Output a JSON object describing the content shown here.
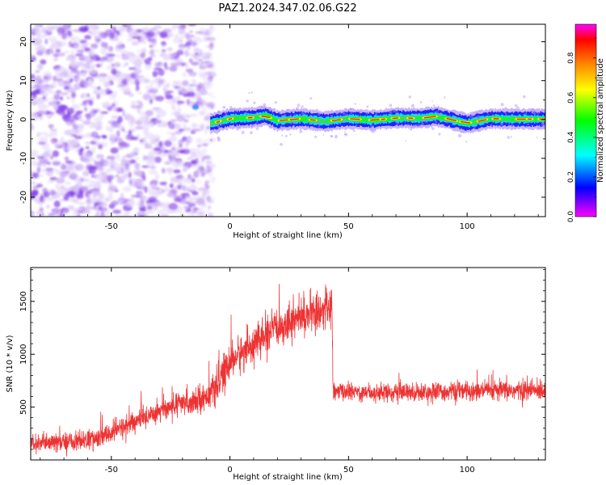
{
  "chart_data": [
    {
      "type": "heatmap",
      "title": "PAZ1.2024.347.02.06.G22",
      "xlabel": "Height of straight line (km)",
      "ylabel": "Frequency (Hz)",
      "xlim": [
        -84,
        133
      ],
      "ylim": [
        -25,
        24.5
      ],
      "x_ticks": [
        -50,
        0,
        50,
        100
      ],
      "y_ticks": [
        -20,
        -10,
        0,
        10,
        20
      ],
      "colorbar": {
        "label": "Normalized spectral amplitude",
        "ticks": [
          0.0,
          0.2,
          0.4,
          0.6,
          0.8
        ],
        "tick_labels": [
          "0.0",
          "0.2",
          "0.4",
          "0.6",
          "0.8"
        ],
        "range": [
          0,
          0.97
        ],
        "colors": [
          "#ff00ff",
          "#0000ff",
          "#00ffff",
          "#00ff00",
          "#ffff00",
          "#ff8000",
          "#ff0000",
          "#ff00ff"
        ]
      },
      "noise_region": {
        "x_range": [
          -84,
          -8
        ],
        "typical_amplitude": [
          0.05,
          0.25
        ],
        "color": "#8000ff"
      },
      "signal_track": {
        "x_start": -8,
        "x_end": 133,
        "frequency_points": [
          [
            -8,
            -1.0
          ],
          [
            0,
            0.2
          ],
          [
            10,
            0.5
          ],
          [
            15,
            1.0
          ],
          [
            20,
            -0.3
          ],
          [
            30,
            0.2
          ],
          [
            40,
            -0.5
          ],
          [
            50,
            0.2
          ],
          [
            60,
            -0.2
          ],
          [
            70,
            0.4
          ],
          [
            80,
            0.3
          ],
          [
            87,
            0.8
          ],
          [
            95,
            -0.3
          ],
          [
            100,
            -1.0
          ],
          [
            110,
            0.2
          ],
          [
            120,
            0.1
          ],
          [
            133,
            0.1
          ]
        ],
        "peak_amplitude": 0.97
      }
    },
    {
      "type": "line",
      "xlabel": "Height of straight line (km)",
      "ylabel": "SNR (10 * v/v)",
      "xlim": [
        -84,
        133
      ],
      "ylim": [
        0,
        1820
      ],
      "x_ticks": [
        -50,
        0,
        50,
        100
      ],
      "y_ticks": [
        500,
        1000,
        1500
      ],
      "series": [
        {
          "color": "#ee3333",
          "trend": [
            [
              -84,
              150
            ],
            [
              -75,
              160
            ],
            [
              -55,
              200
            ],
            [
              -50,
              260
            ],
            [
              -40,
              360
            ],
            [
              -30,
              470
            ],
            [
              -20,
              530
            ],
            [
              -10,
              600
            ],
            [
              -5,
              700
            ],
            [
              0,
              930
            ],
            [
              10,
              1100
            ],
            [
              20,
              1250
            ],
            [
              30,
              1360
            ],
            [
              40,
              1420
            ],
            [
              43,
              1440
            ],
            [
              43.5,
              650
            ],
            [
              60,
              640
            ],
            [
              80,
              640
            ],
            [
              100,
              650
            ],
            [
              133,
              660
            ]
          ],
          "noise_amplitude": [
            [
              -84,
              90
            ],
            [
              -10,
              140
            ],
            [
              0,
              190
            ],
            [
              43,
              200
            ],
            [
              44,
              90
            ],
            [
              133,
              110
            ]
          ]
        }
      ]
    }
  ]
}
